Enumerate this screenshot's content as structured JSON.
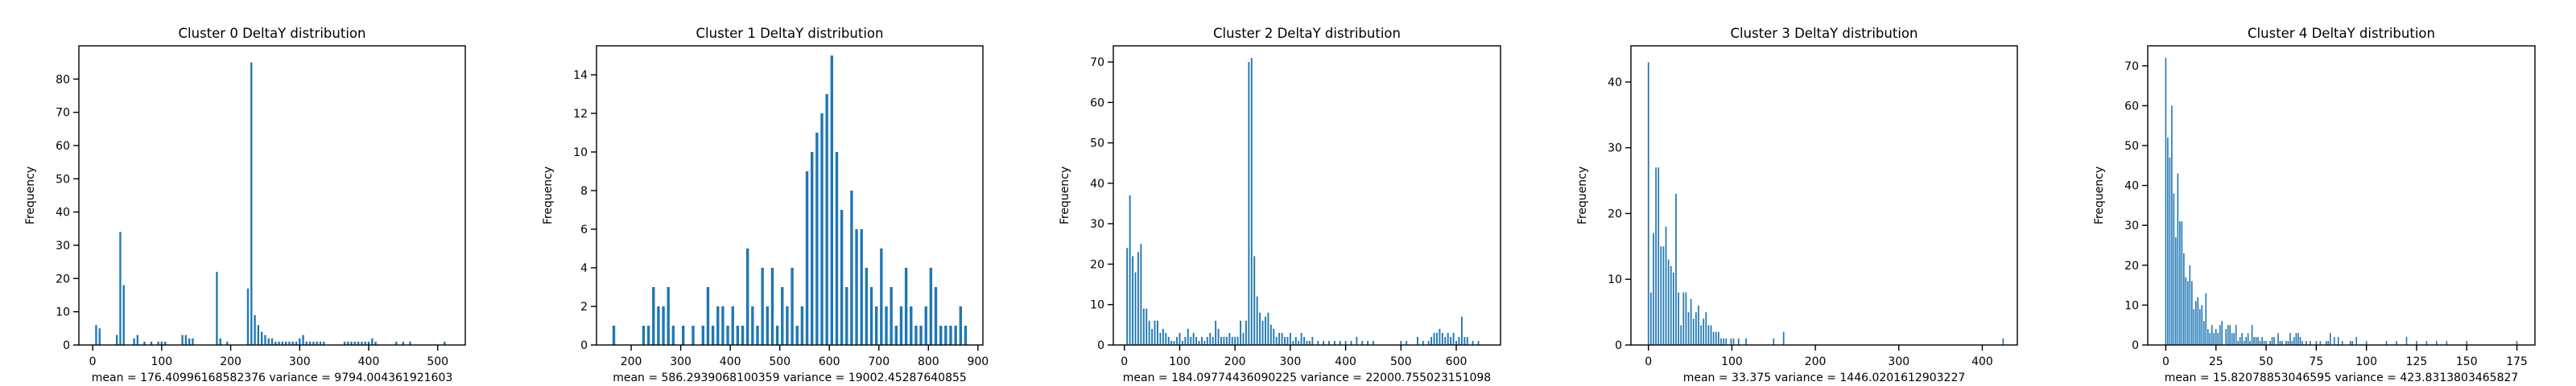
{
  "chart_data": [
    {
      "type": "bar",
      "title": "Cluster 0 DeltaY distribution",
      "ylabel": "Frequency",
      "xlabel": "mean = 176.40996168582376    variance = 9794.004361921603",
      "xlim": [
        -20,
        540
      ],
      "ylim": [
        0,
        90
      ],
      "xticks": [
        0,
        100,
        200,
        300,
        400,
        500
      ],
      "yticks": [
        0,
        10,
        20,
        30,
        40,
        50,
        60,
        70,
        80
      ],
      "bar_color": "#1f77b4",
      "x": [
        5,
        10,
        35,
        40,
        45,
        60,
        65,
        75,
        85,
        95,
        100,
        105,
        130,
        135,
        140,
        145,
        180,
        185,
        195,
        225,
        230,
        235,
        240,
        245,
        250,
        255,
        260,
        265,
        270,
        275,
        280,
        285,
        290,
        295,
        300,
        305,
        310,
        315,
        320,
        325,
        330,
        335,
        365,
        370,
        375,
        380,
        385,
        390,
        395,
        400,
        405,
        410,
        440,
        450,
        460,
        510
      ],
      "values": [
        6,
        5,
        3,
        34,
        18,
        2,
        3,
        1,
        1,
        1,
        1,
        1,
        3,
        3,
        2,
        2,
        22,
        2,
        1,
        17,
        85,
        9,
        6,
        4,
        3,
        2,
        2,
        1,
        1,
        1,
        1,
        1,
        1,
        1,
        2,
        3,
        1,
        1,
        1,
        1,
        1,
        1,
        1,
        1,
        1,
        1,
        1,
        1,
        1,
        1,
        2,
        1,
        1,
        1,
        1,
        1
      ]
    },
    {
      "type": "bar",
      "title": "Cluster 1 DeltaY distribution",
      "ylabel": "Frequency",
      "xlabel": "mean = 586.2939068100359    variance = 19002.45287640855",
      "xlim": [
        130,
        910
      ],
      "ylim": [
        0,
        15.5
      ],
      "xticks": [
        200,
        300,
        400,
        500,
        600,
        700,
        800,
        900
      ],
      "yticks": [
        0,
        2,
        4,
        6,
        8,
        10,
        12,
        14
      ],
      "bar_color": "#1f77b4",
      "x": [
        165,
        225,
        235,
        245,
        255,
        265,
        275,
        285,
        305,
        325,
        345,
        355,
        365,
        375,
        385,
        395,
        405,
        415,
        425,
        435,
        445,
        455,
        465,
        475,
        485,
        495,
        505,
        515,
        525,
        535,
        545,
        555,
        565,
        575,
        585,
        595,
        605,
        615,
        625,
        635,
        645,
        655,
        665,
        675,
        685,
        695,
        705,
        715,
        725,
        735,
        745,
        755,
        765,
        775,
        785,
        795,
        805,
        815,
        825,
        835,
        845,
        855,
        865,
        875
      ],
      "values": [
        1,
        1,
        1,
        3,
        2,
        2,
        3,
        1,
        1,
        1,
        1,
        3,
        1,
        2,
        2,
        1,
        2,
        1,
        1,
        5,
        2,
        1,
        4,
        2,
        4,
        1,
        3,
        2,
        4,
        1,
        2,
        9,
        10,
        11,
        12,
        13,
        15,
        10,
        7,
        3,
        8,
        6,
        6,
        4,
        3,
        2,
        5,
        2,
        3,
        1,
        2,
        4,
        2,
        1,
        1,
        2,
        4,
        3,
        1,
        1,
        1,
        1,
        2,
        1
      ]
    },
    {
      "type": "bar",
      "title": "Cluster 2 DeltaY distribution",
      "ylabel": "Frequency",
      "xlabel": "mean = 184.09774436090225    variance = 22000.755023151098",
      "xlim": [
        -20,
        680
      ],
      "ylim": [
        0,
        74
      ],
      "xticks": [
        0,
        100,
        200,
        300,
        400,
        500,
        600
      ],
      "yticks": [
        0,
        10,
        20,
        30,
        40,
        50,
        60,
        70
      ],
      "bar_color": "#1f77b4",
      "x": [
        5,
        10,
        15,
        20,
        25,
        30,
        35,
        40,
        45,
        50,
        55,
        60,
        65,
        70,
        75,
        80,
        85,
        90,
        95,
        100,
        105,
        110,
        115,
        120,
        125,
        130,
        135,
        140,
        145,
        150,
        155,
        160,
        165,
        170,
        175,
        180,
        185,
        190,
        195,
        200,
        205,
        210,
        215,
        220,
        225,
        230,
        235,
        240,
        245,
        250,
        255,
        260,
        265,
        270,
        275,
        280,
        285,
        290,
        295,
        300,
        305,
        310,
        315,
        320,
        325,
        330,
        335,
        340,
        350,
        360,
        370,
        380,
        390,
        400,
        410,
        420,
        430,
        440,
        450,
        500,
        510,
        530,
        540,
        550,
        555,
        560,
        565,
        570,
        575,
        580,
        585,
        590,
        595,
        600,
        605,
        610,
        615,
        620,
        630,
        640
      ],
      "values": [
        24,
        37,
        22,
        18,
        23,
        25,
        9,
        9,
        6,
        4,
        6,
        6,
        3,
        4,
        3,
        2,
        1,
        1,
        2,
        3,
        1,
        2,
        4,
        2,
        3,
        2,
        1,
        2,
        1,
        2,
        3,
        2,
        6,
        4,
        2,
        2,
        2,
        3,
        2,
        2,
        2,
        6,
        3,
        6,
        70,
        71,
        22,
        12,
        8,
        6,
        7,
        8,
        5,
        4,
        2,
        3,
        3,
        2,
        2,
        3,
        1,
        2,
        1,
        3,
        2,
        1,
        1,
        2,
        1,
        1,
        1,
        1,
        1,
        1,
        1,
        2,
        1,
        1,
        1,
        1,
        1,
        2,
        1,
        1,
        2,
        3,
        3,
        4,
        3,
        2,
        3,
        2,
        3,
        1,
        2,
        7,
        2,
        2,
        1,
        1
      ]
    },
    {
      "type": "bar",
      "title": "Cluster 3 DeltaY distribution",
      "ylabel": "Frequency",
      "xlabel": "mean = 33.375    variance = 1446.0201612903227",
      "xlim": [
        -21,
        442
      ],
      "ylim": [
        0,
        45.5
      ],
      "xticks": [
        0,
        100,
        200,
        300,
        400
      ],
      "yticks": [
        0,
        10,
        20,
        30,
        40
      ],
      "bar_color": "#1f77b4",
      "x": [
        0,
        3,
        6,
        9,
        12,
        15,
        18,
        21,
        24,
        27,
        30,
        33,
        36,
        39,
        42,
        45,
        48,
        51,
        54,
        57,
        60,
        63,
        66,
        69,
        72,
        75,
        78,
        81,
        84,
        87,
        90,
        93,
        99,
        102,
        108,
        117,
        150,
        162,
        425
      ],
      "values": [
        43,
        8,
        17,
        27,
        27,
        15,
        15,
        18,
        13,
        12,
        11,
        23,
        8,
        3,
        8,
        8,
        5,
        7,
        4,
        5,
        6,
        3,
        4,
        5,
        3,
        3,
        2,
        2,
        2,
        1,
        1,
        1,
        1,
        1,
        1,
        1,
        1,
        2,
        1
      ]
    },
    {
      "type": "bar",
      "title": "Cluster 4 DeltaY distribution",
      "ylabel": "Frequency",
      "xlabel": "mean = 15.82078853046595    variance = 423.8313803465827",
      "xlim": [
        -9,
        184
      ],
      "ylim": [
        0,
        75
      ],
      "xticks": [
        0,
        25,
        50,
        75,
        100,
        125,
        150,
        175
      ],
      "yticks": [
        0,
        10,
        20,
        30,
        40,
        50,
        60,
        70
      ],
      "bar_color": "#1f77b4",
      "x": [
        0,
        1,
        2,
        3,
        4,
        5,
        6,
        7,
        8,
        9,
        10,
        11,
        12,
        13,
        14,
        15,
        16,
        17,
        18,
        19,
        20,
        21,
        22,
        23,
        24,
        25,
        26,
        27,
        28,
        30,
        31,
        32,
        33,
        34,
        35,
        36,
        37,
        38,
        39,
        40,
        41,
        42,
        43,
        44,
        45,
        46,
        47,
        48,
        49,
        50,
        52,
        53,
        54,
        56,
        57,
        58,
        60,
        61,
        62,
        63,
        64,
        65,
        66,
        67,
        68,
        70,
        72,
        75,
        77,
        80,
        81,
        82,
        84,
        86,
        88,
        92,
        93,
        95,
        100,
        110,
        115,
        120,
        125,
        130,
        135,
        140,
        150,
        175
      ],
      "values": [
        72,
        52,
        47,
        60,
        38,
        27,
        43,
        31,
        31,
        23,
        17,
        16,
        20,
        16,
        9,
        11,
        12,
        9,
        10,
        6,
        13,
        4,
        3,
        5,
        3,
        4,
        3,
        5,
        6,
        4,
        5,
        5,
        3,
        3,
        5,
        1,
        2,
        3,
        1,
        2,
        3,
        1,
        5,
        2,
        2,
        2,
        1,
        2,
        1,
        1,
        1,
        2,
        2,
        3,
        1,
        1,
        1,
        1,
        3,
        1,
        2,
        3,
        3,
        2,
        1,
        1,
        1,
        1,
        1,
        1,
        1,
        3,
        2,
        2,
        1,
        1,
        1,
        2,
        1,
        1,
        1,
        2,
        1,
        1,
        1,
        1,
        1,
        1
      ]
    }
  ]
}
